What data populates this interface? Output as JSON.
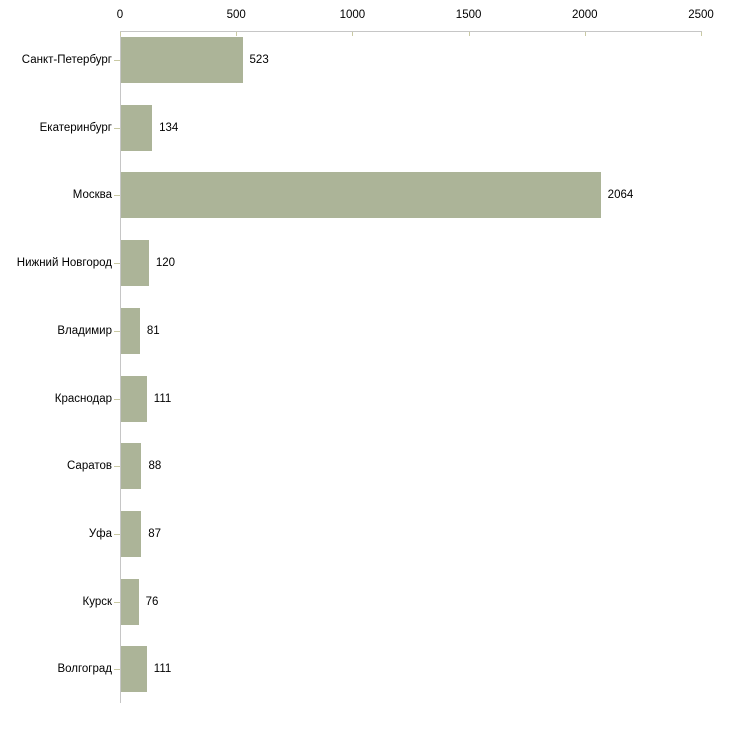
{
  "chart_data": {
    "type": "bar",
    "orientation": "horizontal",
    "title": "",
    "xlabel": "",
    "ylabel": "",
    "categories": [
      "Санкт-Петербург",
      "Екатеринбург",
      "Москва",
      "Нижний Новгород",
      "Владимир",
      "Краснодар",
      "Саратов",
      "Уфа",
      "Курск",
      "Волгоград"
    ],
    "values": [
      523,
      134,
      2064,
      120,
      81,
      111,
      88,
      87,
      76,
      111
    ],
    "value_labels": [
      "523",
      "134",
      "2064",
      "120",
      "81",
      "111",
      "88",
      "87",
      "76",
      "111"
    ],
    "xlim": [
      0,
      2500
    ],
    "x_ticks": [
      0,
      500,
      1000,
      1500,
      2000,
      2500
    ],
    "x_tick_labels": [
      "0",
      "500",
      "1000",
      "1500",
      "2000",
      "2500"
    ],
    "grid": false,
    "legend": false,
    "axis_position": "top",
    "colors": {
      "bar_fill": "#acb498",
      "axis_line": "#c6c6c6",
      "tick_mark": "#c9c9a3",
      "text": "#000000",
      "background": "#ffffff"
    }
  }
}
